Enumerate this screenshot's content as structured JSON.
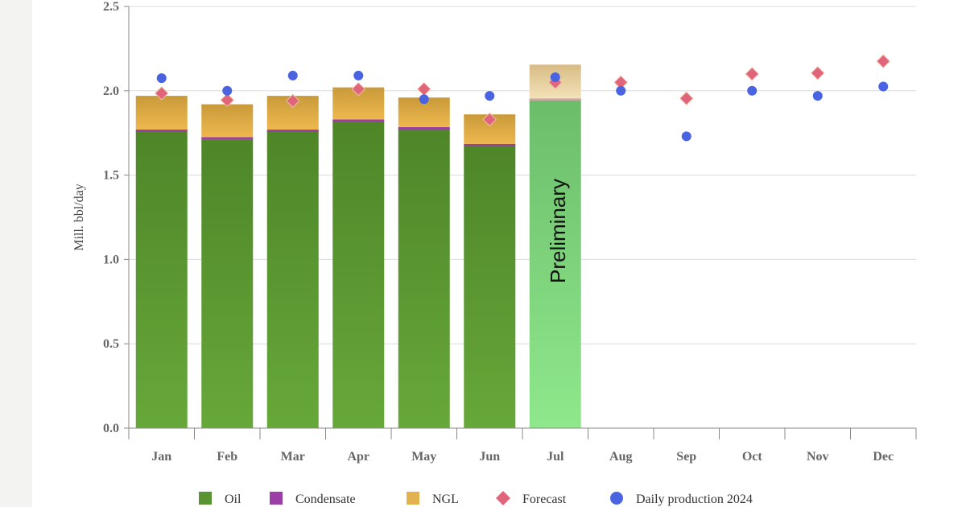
{
  "chart_data": {
    "type": "bar",
    "stacked": true,
    "ylabel": "Mill. bbl/day",
    "ylim": [
      0,
      2.5
    ],
    "yticks": [
      "0.0",
      "0.5",
      "1.0",
      "1.5",
      "2.0",
      "2.5"
    ],
    "grid": true,
    "legend_position": "bottom",
    "categories": [
      "Jan",
      "Feb",
      "Mar",
      "Apr",
      "May",
      "Jun",
      "Jul",
      "Aug",
      "Sep",
      "Oct",
      "Nov",
      "Dec"
    ],
    "series": [
      {
        "name": "Oil",
        "kind": "bar",
        "color": "#5a9432",
        "values": [
          1.76,
          1.71,
          1.76,
          1.82,
          1.78,
          1.68,
          1.95,
          null,
          null,
          null,
          null,
          null
        ]
      },
      {
        "name": "Condensate",
        "kind": "bar",
        "color": "#9b3fa6",
        "values": [
          0.01,
          0.015,
          0.01,
          0.01,
          0.005,
          0.005,
          0.005,
          null,
          null,
          null,
          null,
          null
        ]
      },
      {
        "name": "NGL",
        "kind": "bar",
        "color": "#e2b24e",
        "values": [
          0.2,
          0.195,
          0.2,
          0.19,
          0.175,
          0.175,
          0.2,
          null,
          null,
          null,
          null,
          null
        ]
      },
      {
        "name": "Forecast",
        "kind": "diamond",
        "color": "#e0657a",
        "values": [
          1.985,
          1.945,
          1.94,
          2.01,
          2.01,
          1.83,
          2.05,
          2.05,
          1.955,
          2.1,
          2.105,
          2.175
        ]
      },
      {
        "name": "Daily production 2024",
        "kind": "circle",
        "color": "#4a63e0",
        "values": [
          2.075,
          2.0,
          2.09,
          2.09,
          1.95,
          1.97,
          2.08,
          2.0,
          1.73,
          2.0,
          1.97,
          2.025
        ]
      }
    ],
    "preliminary_index": 6,
    "annotation": "Preliminary"
  }
}
